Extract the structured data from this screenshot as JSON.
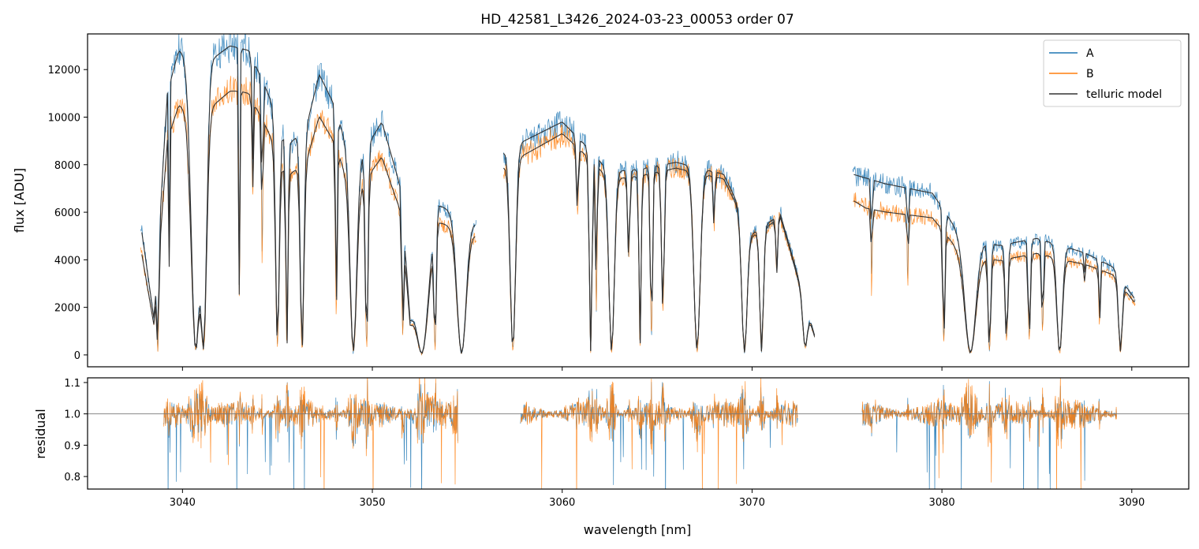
{
  "chart_data": [
    {
      "type": "line",
      "title": "HD_42581_L3426_2024-03-23_00053  order 07",
      "xlabel": "",
      "ylabel": "flux [ADU]",
      "xlim": [
        3035,
        3093
      ],
      "ylim": [
        -500,
        13500
      ],
      "yticks": [
        0,
        2000,
        4000,
        6000,
        8000,
        10000,
        12000
      ],
      "legend": {
        "placement": "top-right",
        "entries": [
          "A",
          "B",
          "telluric model"
        ]
      },
      "gaps": [
        [
          3055.5,
          3056.9
        ],
        [
          3073.3,
          3075.3
        ]
      ],
      "series": [
        {
          "name": "A",
          "color": "#1f77b4",
          "profile": {
            "start": 3037.8,
            "end": 3090.2,
            "step": 0.25,
            "envelope_x": [
              3037.8,
              3038.5,
              3039.2,
              3039.8,
              3041.5,
              3042.5,
              3043.5,
              3044.5,
              3045.5,
              3046.5,
              3047.2,
              3048.0,
              3049.0,
              3050.5,
              3051.5,
              3052.0,
              3053.5,
              3055.5,
              3056.9,
              3058.0,
              3060.0,
              3061.0,
              3062.5,
              3064.0,
              3066.0,
              3068.5,
              3070.0,
              3071.5,
              3073.3,
              3075.3,
              3077.0,
              3079.5,
              3081.0,
              3083.0,
              3085.0,
              3087.5,
              3089.0,
              3090.2
            ],
            "envelope_y": [
              5500,
              1500,
              11000,
              12800,
              12400,
              13000,
              12800,
              11000,
              8800,
              9500,
              11800,
              10500,
              7800,
              9800,
              7000,
              1500,
              6300,
              5500,
              8500,
              9000,
              9800,
              9000,
              7700,
              7800,
              8100,
              7600,
              5100,
              5900,
              800,
              7600,
              7200,
              6800,
              5000,
              4600,
              4900,
              4300,
              3700,
              2300
            ],
            "absorption_lines": [
              [
                3038.7,
                0.1,
                0.97
              ],
              [
                3039.3,
                0.05,
                0.6
              ],
              [
                3040.7,
                0.5,
                0.98
              ],
              [
                3041.1,
                0.35,
                0.97
              ],
              [
                3043.0,
                0.06,
                0.82
              ],
              [
                3043.7,
                0.08,
                0.35
              ],
              [
                3044.2,
                0.07,
                0.62
              ],
              [
                3045.0,
                0.2,
                0.95
              ],
              [
                3045.5,
                0.12,
                0.95
              ],
              [
                3046.3,
                0.2,
                0.97
              ],
              [
                3048.1,
                0.1,
                0.8
              ],
              [
                3049.0,
                0.35,
                0.98
              ],
              [
                3049.7,
                0.15,
                0.95
              ],
              [
                3051.6,
                0.1,
                0.85
              ],
              [
                3052.6,
                0.6,
                0.98
              ],
              [
                3053.3,
                0.12,
                0.95
              ],
              [
                3054.7,
                0.5,
                0.99
              ],
              [
                3057.4,
                0.3,
                0.97
              ],
              [
                3060.8,
                0.12,
                0.3
              ],
              [
                3061.5,
                0.15,
                0.98
              ],
              [
                3061.8,
                0.08,
                0.75
              ],
              [
                3062.6,
                0.3,
                0.98
              ],
              [
                3063.5,
                0.12,
                0.45
              ],
              [
                3064.1,
                0.12,
                0.95
              ],
              [
                3064.7,
                0.12,
                0.9
              ],
              [
                3065.3,
                0.15,
                0.75
              ],
              [
                3067.1,
                0.35,
                0.97
              ],
              [
                3068.0,
                0.08,
                0.3
              ],
              [
                3069.6,
                0.3,
                0.98
              ],
              [
                3070.5,
                0.2,
                0.97
              ],
              [
                3071.3,
                0.1,
                0.4
              ],
              [
                3072.8,
                0.25,
                0.85
              ],
              [
                3076.3,
                0.06,
                0.6
              ],
              [
                3078.2,
                0.06,
                0.55
              ],
              [
                3080.1,
                0.12,
                0.9
              ],
              [
                3081.5,
                0.6,
                0.98
              ],
              [
                3082.5,
                0.15,
                0.95
              ],
              [
                3083.4,
                0.15,
                0.85
              ],
              [
                3084.6,
                0.12,
                0.85
              ],
              [
                3085.3,
                0.1,
                0.75
              ],
              [
                3086.2,
                0.3,
                0.98
              ],
              [
                3087.5,
                0.06,
                0.2
              ],
              [
                3088.3,
                0.08,
                0.65
              ],
              [
                3089.4,
                0.2,
                0.95
              ]
            ]
          }
        },
        {
          "name": "B",
          "color": "#ff7f0e",
          "scale_knots_x": [
            3037.8,
            3040.0,
            3043.0,
            3047.0,
            3051.0,
            3056.0,
            3060.0,
            3066.0,
            3072.0,
            3076.0,
            3080.0,
            3087.0,
            3090.2
          ],
          "scale_knots_y": [
            0.82,
            0.82,
            0.86,
            0.85,
            0.85,
            0.92,
            0.95,
            0.97,
            0.98,
            0.83,
            0.85,
            0.88,
            0.93
          ]
        },
        {
          "name": "telluric model",
          "color": "#333333"
        }
      ]
    },
    {
      "type": "line",
      "title": "",
      "xlabel": "wavelength [nm]",
      "ylabel": "residual",
      "xlim": [
        3035,
        3093
      ],
      "ylim": [
        0.76,
        1.115
      ],
      "yticks": [
        0.8,
        0.9,
        1.0,
        1.1
      ],
      "xticks": [
        3040,
        3050,
        3060,
        3070,
        3080,
        3090
      ],
      "reference_line": 1.0,
      "segments": [
        [
          3039.0,
          3054.5
        ],
        [
          3057.8,
          3072.4
        ],
        [
          3075.8,
          3089.2
        ]
      ],
      "series": [
        {
          "name": "A",
          "color": "#1f77b4"
        },
        {
          "name": "B",
          "color": "#ff7f0e"
        }
      ]
    }
  ],
  "tick_labels": {
    "x": [
      "3040",
      "3050",
      "3060",
      "3070",
      "3080",
      "3090"
    ],
    "top_y": [
      "0",
      "2000",
      "4000",
      "6000",
      "8000",
      "10000",
      "12000"
    ],
    "bottom_y": [
      "0.8",
      "0.9",
      "1.0",
      "1.1"
    ]
  }
}
